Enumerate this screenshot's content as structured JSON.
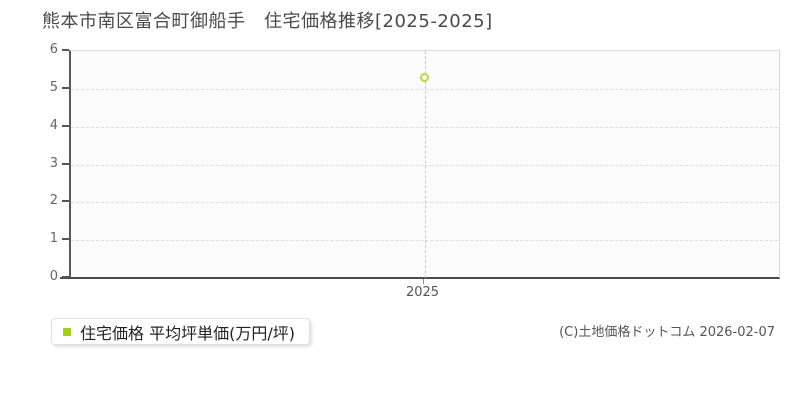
{
  "title": "熊本市南区富合町御船手　住宅価格推移[2025-2025]",
  "legend": {
    "label": "住宅価格 平均坪単価(万円/坪)"
  },
  "footer": {
    "copyright": "(C)土地価格ドットコム 2026-02-07"
  },
  "colors": {
    "legend_marker_green": "#a5cd1e",
    "point_ring_green": "#bcd53a",
    "title_text": "#4a4a4a",
    "axis_line_dark": "#4a4a4a",
    "axis_label_gray": "#666666",
    "gridline_gray": "#dddddd",
    "guide_line_gray": "#c8c8c8",
    "plot_background": "#fbfbfb"
  },
  "chart_data": {
    "type": "scatter",
    "title": "熊本市南区富合町御船手 住宅価格推移[2025-2025]",
    "categories": [
      "2025"
    ],
    "series": [
      {
        "name": "住宅価格 平均坪単価(万円/坪)",
        "values": [
          5.3
        ]
      }
    ],
    "xlabel": "",
    "ylabel": "",
    "ylim": [
      0,
      6
    ],
    "yticks": [
      0,
      1,
      2,
      3,
      4,
      5,
      6
    ],
    "grid": "horizontal-dashed",
    "vertical_guides": "dashed line at each category",
    "legend_position": "bottom-left-outside",
    "marker": "hollow-circle"
  }
}
